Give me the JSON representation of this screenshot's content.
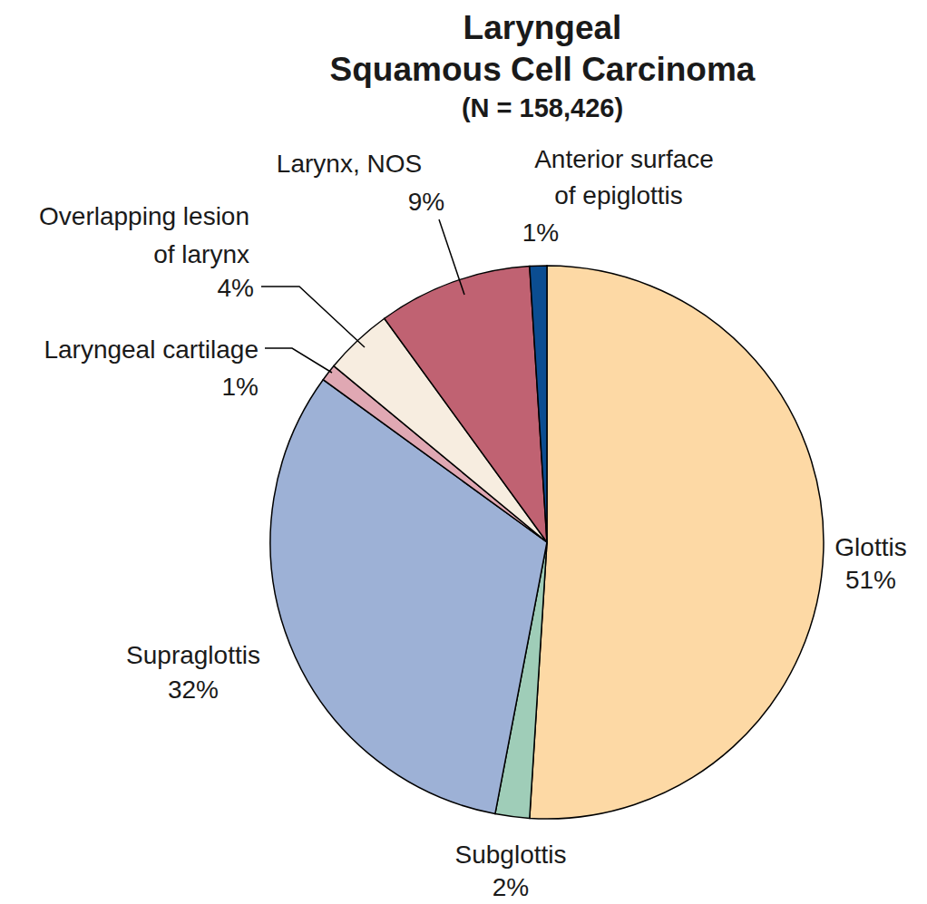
{
  "chart_data": {
    "type": "pie",
    "title": "Laryngeal Squamous Cell Carcinoma",
    "subtitle": "(N = 158,426)",
    "categories": [
      "Glottis",
      "Subglottis",
      "Supraglottis",
      "Laryngeal cartilage",
      "Overlapping lesion of larynx",
      "Larynx, NOS",
      "Anterior surface of epiglottis"
    ],
    "values": [
      51,
      2,
      32,
      1,
      4,
      9,
      1
    ],
    "value_labels": [
      "51%",
      "2%",
      "32%",
      "1%",
      "4%",
      "9%",
      "1%"
    ],
    "colors": [
      "#fdd9a5",
      "#9fcdb8",
      "#9db1d6",
      "#e0a8b3",
      "#f7ede0",
      "#c06272",
      "#0b4d91"
    ],
    "data_labels": true
  }
}
